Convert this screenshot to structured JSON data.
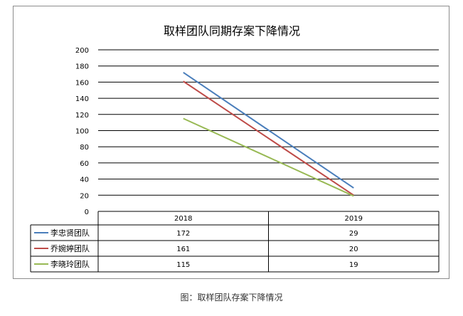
{
  "chart_data": {
    "type": "line",
    "title": "取样团队同期存案下降情况",
    "categories": [
      "2018",
      "2019"
    ],
    "ylim": [
      0,
      200
    ],
    "ytick_step": 20,
    "grid": true,
    "legend": "data-table-left",
    "series": [
      {
        "name": "李忠贤团队",
        "values": [
          172,
          29
        ],
        "color": "#4a7ebb"
      },
      {
        "name": "乔婉婷团队",
        "values": [
          161,
          20
        ],
        "color": "#be4b48"
      },
      {
        "name": "李晓玲团队",
        "values": [
          115,
          19
        ],
        "color": "#98b954"
      }
    ]
  },
  "caption": "图：取样团队存案下降情况"
}
